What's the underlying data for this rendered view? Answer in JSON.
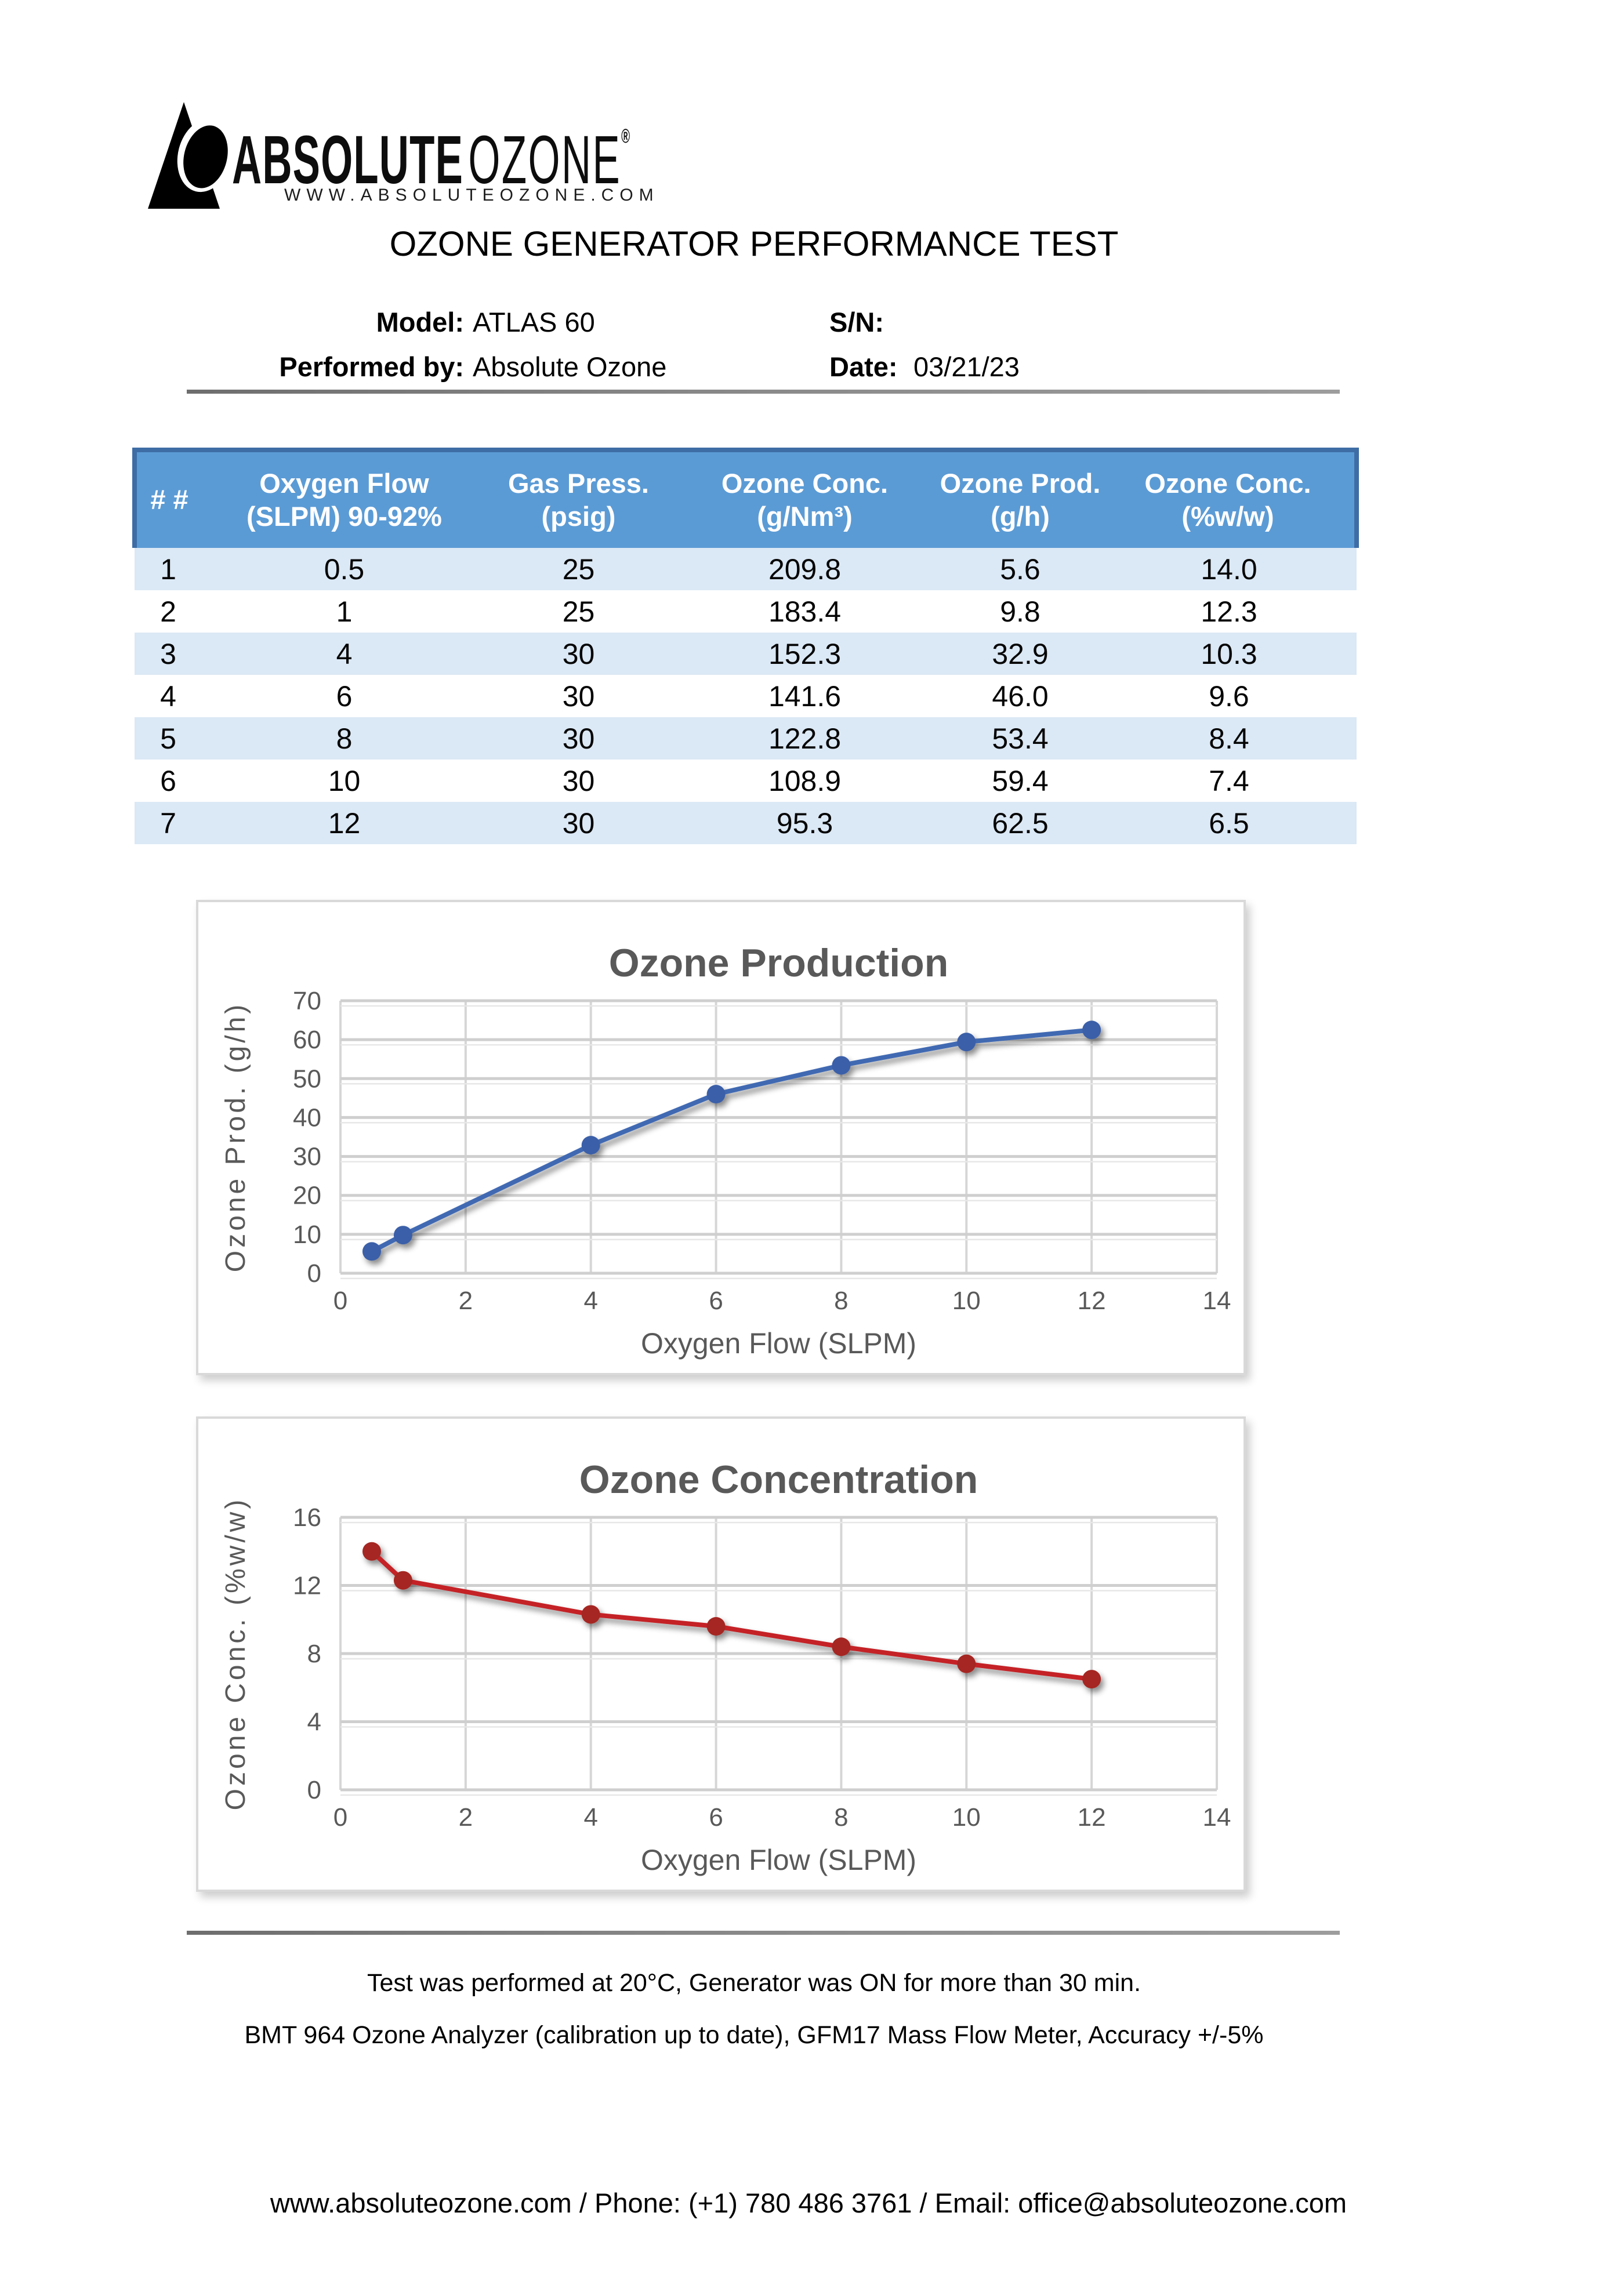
{
  "logo": {
    "brand_bold": "ABSOLUTE",
    "brand_light": "OZONE",
    "registered": "®",
    "website": "WWW.ABSOLUTEOZONE.COM"
  },
  "title": "OZONE GENERATOR PERFORMANCE TEST",
  "info": {
    "model_label": "Model:",
    "model_value": "ATLAS 60",
    "sn_label": "S/N:",
    "sn_value": "",
    "performed_label": "Performed by:",
    "performed_value": "Absolute Ozone",
    "date_label": "Date:",
    "date_value": "03/21/23"
  },
  "table": {
    "headers": [
      {
        "line1": "# #",
        "line2": ""
      },
      {
        "line1": "Oxygen Flow",
        "line2": "(SLPM) 90-92%"
      },
      {
        "line1": "Gas Press.",
        "line2": "(psig)"
      },
      {
        "line1": "Ozone Conc.",
        "line2": "(g/Nm³)"
      },
      {
        "line1": "Ozone Prod.",
        "line2": "(g/h)"
      },
      {
        "line1": "Ozone Conc.",
        "line2": "(%w/w)"
      }
    ],
    "rows": [
      [
        "1",
        "0.5",
        "25",
        "209.8",
        "5.6",
        "14.0"
      ],
      [
        "2",
        "1",
        "25",
        "183.4",
        "9.8",
        "12.3"
      ],
      [
        "3",
        "4",
        "30",
        "152.3",
        "32.9",
        "10.3"
      ],
      [
        "4",
        "6",
        "30",
        "141.6",
        "46.0",
        "9.6"
      ],
      [
        "5",
        "8",
        "30",
        "122.8",
        "53.4",
        "8.4"
      ],
      [
        "6",
        "10",
        "30",
        "108.9",
        "59.4",
        "7.4"
      ],
      [
        "7",
        "12",
        "30",
        "95.3",
        "62.5",
        "6.5"
      ]
    ]
  },
  "chart_data": [
    {
      "type": "line",
      "title": "Ozone Production",
      "xlabel": "Oxygen Flow (SLPM)",
      "ylabel": "Ozone Prod. (g/h)",
      "x": [
        0.5,
        1,
        4,
        6,
        8,
        10,
        12
      ],
      "y": [
        5.6,
        9.8,
        32.9,
        46.0,
        53.4,
        59.4,
        62.5
      ],
      "xlim": [
        0,
        14
      ],
      "ylim": [
        0,
        70
      ],
      "xtick": 2,
      "ytick": 10,
      "grid": true,
      "legend": "none",
      "line_color": "#4169b2",
      "marker_color": "#3a5ea8"
    },
    {
      "type": "line",
      "title": "Ozone Concentration",
      "xlabel": "Oxygen Flow (SLPM)",
      "ylabel": "Ozone Conc. (%w/w)",
      "x": [
        0.5,
        1,
        4,
        6,
        8,
        10,
        12
      ],
      "y": [
        14.0,
        12.3,
        10.3,
        9.6,
        8.4,
        7.4,
        6.5
      ],
      "xlim": [
        0,
        14
      ],
      "ylim": [
        0,
        16
      ],
      "xtick": 2,
      "ytick": 4,
      "grid": true,
      "legend": "none",
      "line_color": "#c42026",
      "marker_color": "#a52620"
    }
  ],
  "notes": [
    "Test was performed at 20°C, Generator was ON for more than 30 min.",
    "BMT 964 Ozone Analyzer (calibration up to date), GFM17 Mass Flow Meter, Accuracy +/-5%"
  ],
  "footer": "www.absoluteozone.com / Phone: (+1) 780 486 3761 / Email: office@absoluteozone.com",
  "colors": {
    "table_header_bg": "#5b9bd5",
    "table_header_border": "#3e6da5",
    "table_band_row": "#dbe8f5",
    "chart_text": "#595959",
    "gridline": "#d2d2d2",
    "series1": "#4169b2",
    "series2": "#c42026"
  }
}
